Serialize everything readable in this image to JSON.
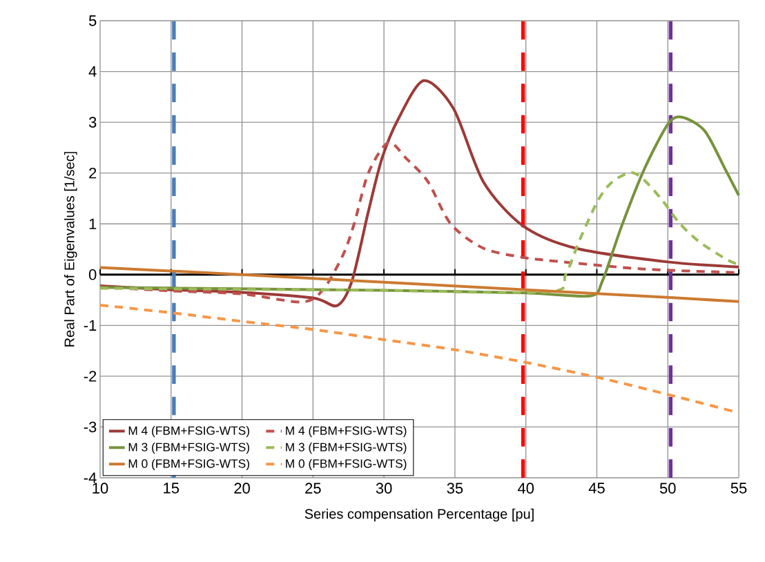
{
  "chart_data": {
    "type": "line",
    "xlabel": "Series compensation Percentage [pu]",
    "ylabel": "Real Part of Eigenvalues [1/sec]",
    "xlim": [
      10,
      55
    ],
    "xticks": [
      10,
      15,
      20,
      25,
      30,
      35,
      40,
      45,
      50,
      55
    ],
    "ylim": [
      -4,
      5
    ],
    "yticks": [
      -4,
      -3,
      -2,
      -1,
      0,
      1,
      2,
      3,
      4,
      5
    ],
    "grid": true,
    "legend": "bottom left",
    "marker": "none",
    "series": [
      {
        "name": "M 4 (FBM+FSIG-WTS)",
        "color": "#9c3a37",
        "line_style": "solid",
        "x": [
          10,
          15,
          20,
          25,
          26.7,
          27.75,
          28.9,
          29.85,
          31.0,
          32.8,
          34.9,
          37.0,
          39.8,
          43.5,
          50,
          55
        ],
        "values": [
          -0.22,
          -0.3,
          -0.35,
          -0.46,
          -0.61,
          -0.12,
          1.24,
          2.28,
          3.06,
          3.82,
          3.27,
          1.83,
          0.96,
          0.52,
          0.25,
          0.15
        ]
      },
      {
        "name": "M 4 (FBM+FSIG-WTS)",
        "color": "#c0504d",
        "line_style": "dashed",
        "x": [
          10,
          15,
          20,
          24.2,
          25.7,
          27.1,
          27.9,
          28.9,
          30.3,
          31.6,
          33.1,
          34.7,
          37.0,
          39.8,
          41.9,
          48.3,
          55
        ],
        "values": [
          -0.24,
          -0.32,
          -0.38,
          -0.54,
          -0.3,
          0.38,
          1.0,
          2.0,
          2.6,
          2.28,
          1.83,
          1.0,
          0.52,
          0.34,
          0.27,
          0.11,
          0.04
        ]
      },
      {
        "name": "M 3 (FBM+FSIG-WTS)",
        "color": "#77933c",
        "line_style": "solid",
        "x": [
          10,
          20,
          30,
          40,
          44.5,
          45.4,
          46.7,
          48.3,
          50,
          51,
          52.6,
          54.0,
          55
        ],
        "values": [
          -0.25,
          -0.28,
          -0.31,
          -0.36,
          -0.42,
          -0.12,
          0.92,
          2.05,
          2.96,
          3.1,
          2.83,
          2.1,
          1.56
        ]
      },
      {
        "name": "M 3 (FBM+FSIG-WTS)",
        "color": "#9bbb59",
        "line_style": "dashed",
        "x": [
          10,
          20,
          30,
          41.6,
          42.8,
          43.8,
          45.1,
          46.1,
          47.4,
          48.3,
          49.6,
          50.8,
          52.2,
          54.2,
          55
        ],
        "values": [
          -0.27,
          -0.29,
          -0.31,
          -0.34,
          0.0,
          0.69,
          1.47,
          1.83,
          2.01,
          1.87,
          1.47,
          1.02,
          0.65,
          0.29,
          0.2
        ]
      },
      {
        "name": "M 0 (FBM+FSIG-WTS)",
        "color": "#cc7a30",
        "line_style": "solid",
        "x": [
          10,
          20,
          30,
          40,
          50,
          55
        ],
        "values": [
          0.14,
          0.0,
          -0.15,
          -0.3,
          -0.45,
          -0.53
        ]
      },
      {
        "name": "M 0 (FBM+FSIG-WTS)",
        "color": "#f79646",
        "line_style": "dashed",
        "x": [
          10,
          15,
          20,
          25,
          30,
          35,
          40,
          45,
          50,
          55
        ],
        "values": [
          -0.6,
          -0.75,
          -0.92,
          -1.08,
          -1.28,
          -1.48,
          -1.73,
          -2.02,
          -2.36,
          -2.72
        ]
      }
    ],
    "ref_lines": [
      {
        "axis": "x",
        "value": 15.2,
        "color": "#4a7ebb",
        "line_style": "dashed"
      },
      {
        "axis": "x",
        "value": 39.8,
        "color": "#ff0000",
        "line_style": "dashed"
      },
      {
        "axis": "x",
        "value": 50.2,
        "color": "#7030a0",
        "line_style": "dashed"
      }
    ]
  }
}
